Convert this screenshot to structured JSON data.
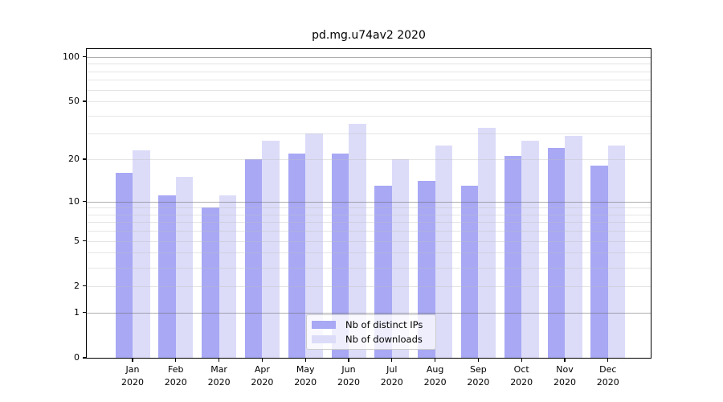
{
  "title": "pd.mg.u74av2 2020",
  "legend": {
    "items": [
      {
        "label": "Nb of distinct IPs",
        "color": "#a8a8f5"
      },
      {
        "label": "Nb of downloads",
        "color": "#dcdcf9"
      }
    ]
  },
  "chart_data": {
    "type": "bar",
    "title": "pd.mg.u74av2 2020",
    "categories": [
      "Jan",
      "Feb",
      "Mar",
      "Apr",
      "May",
      "Jun",
      "Jul",
      "Aug",
      "Sep",
      "Oct",
      "Nov",
      "Dec"
    ],
    "year_label": "2020",
    "series": [
      {
        "name": "Nb of distinct IPs",
        "color": "#a8a8f5",
        "values": [
          16,
          11,
          9,
          20,
          22,
          22,
          13,
          14,
          13,
          21,
          24,
          18
        ]
      },
      {
        "name": "Nb of downloads",
        "color": "#dcdcf9",
        "values": [
          23,
          15,
          11,
          27,
          30,
          35,
          20,
          25,
          33,
          27,
          29,
          25
        ]
      }
    ],
    "xlabel": "",
    "ylabel": "",
    "yscale": "log10(value+1)",
    "ytick_labels": [
      "0",
      "1",
      "2",
      "5",
      "10",
      "20",
      "50",
      "100"
    ],
    "ytick_values": [
      0,
      1,
      2,
      5,
      10,
      20,
      50,
      100
    ],
    "major_gridlines": [
      1,
      10,
      100
    ],
    "minor_gridlines": [
      2,
      3,
      4,
      5,
      6,
      7,
      8,
      9,
      20,
      30,
      40,
      50,
      60,
      70,
      80,
      90
    ],
    "ylim_top_value": 112,
    "grid": true,
    "legend_position": "lower-center"
  }
}
